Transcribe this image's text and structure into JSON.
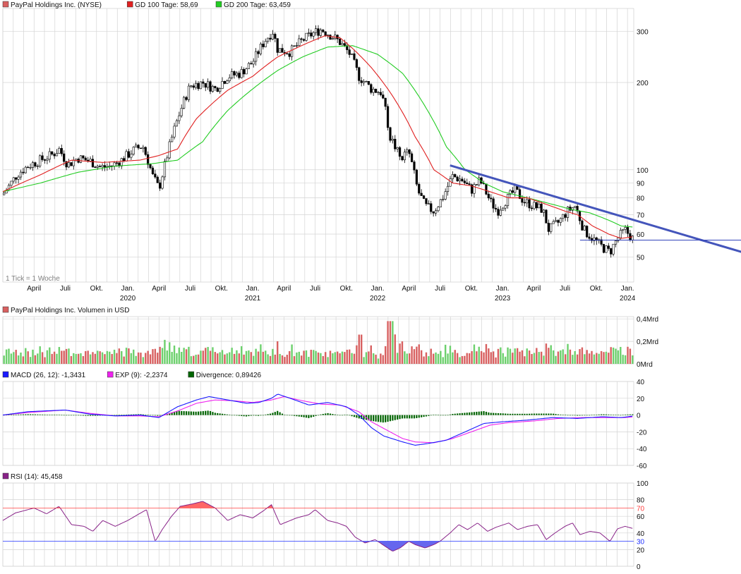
{
  "colors": {
    "grid": "#d4d4d4",
    "gd100": "#e02020",
    "gd200": "#22cc22",
    "trend": "#4455bb",
    "support": "#3344bb",
    "vol_up": "#6cd06c",
    "vol_down": "#d86060",
    "macd": "#1a1aff",
    "signal": "#ee22ee",
    "divergence": "#006400",
    "rsi": "#882288",
    "rsi_hi": "#ff4040",
    "rsi_lo": "#2233ff",
    "rsi_hi_fill": "#ff6666",
    "rsi_lo_fill": "#6666ee"
  },
  "price_panel": {
    "legend": [
      {
        "text": "PayPal Holdings Inc. (NYSE)",
        "color": "#d86060"
      },
      {
        "text": "GD 100 Tage: 58,69",
        "color": "#e02020"
      },
      {
        "text": "GD 200 Tage: 63,459",
        "color": "#22cc22"
      }
    ],
    "note": "1 Tick = 1 Woche",
    "scale": "log",
    "ylim": [
      41,
      360
    ],
    "yticks": [
      {
        "v": 300,
        "t": "300"
      },
      {
        "v": 200,
        "t": "200"
      },
      {
        "v": 100,
        "t": "100"
      },
      {
        "v": 90,
        "t": "90"
      },
      {
        "v": 80,
        "t": "80"
      },
      {
        "v": 70,
        "t": "70"
      },
      {
        "v": 60,
        "t": "60"
      },
      {
        "v": 50,
        "t": "50"
      }
    ],
    "xticks": [
      {
        "t": "April",
        "y": "",
        "x": 2019.25
      },
      {
        "t": "Juli",
        "y": "",
        "x": 2019.5
      },
      {
        "t": "Okt.",
        "y": "",
        "x": 2019.75
      },
      {
        "t": "Jan.",
        "y": "2020",
        "x": 2020.0
      },
      {
        "t": "April",
        "y": "",
        "x": 2020.25
      },
      {
        "t": "Juli",
        "y": "",
        "x": 2020.5
      },
      {
        "t": "Okt.",
        "y": "",
        "x": 2020.75
      },
      {
        "t": "Jan.",
        "y": "2021",
        "x": 2021.0
      },
      {
        "t": "April",
        "y": "",
        "x": 2021.25
      },
      {
        "t": "Juli",
        "y": "",
        "x": 2021.5
      },
      {
        "t": "Okt.",
        "y": "",
        "x": 2021.75
      },
      {
        "t": "Jan.",
        "y": "2022",
        "x": 2022.0
      },
      {
        "t": "April",
        "y": "",
        "x": 2022.25
      },
      {
        "t": "Juli",
        "y": "",
        "x": 2022.5
      },
      {
        "t": "Okt.",
        "y": "",
        "x": 2022.75
      },
      {
        "t": "Jan.",
        "y": "2023",
        "x": 2023.0
      },
      {
        "t": "April",
        "y": "",
        "x": 2023.25
      },
      {
        "t": "Juli",
        "y": "",
        "x": 2023.5
      },
      {
        "t": "Okt.",
        "y": "",
        "x": 2023.75
      },
      {
        "t": "Jan.",
        "y": "2024",
        "x": 2024.0
      }
    ]
  },
  "volume_panel": {
    "legend": [
      {
        "text": "PayPal Holdings Inc. Volumen in USD",
        "color": "#d86060"
      }
    ],
    "ylim": [
      0,
      0.42
    ],
    "yticks": [
      {
        "v": 0.4,
        "t": "0,4Mrd"
      },
      {
        "v": 0.2,
        "t": "0,2Mrd"
      },
      {
        "v": 0,
        "t": "0Mrd"
      }
    ]
  },
  "macd_panel": {
    "legend": [
      {
        "text": "MACD (26, 12): -1,3431",
        "color": "#1a1aff"
      },
      {
        "text": "EXP (9): -2,2374",
        "color": "#ee22ee"
      },
      {
        "text": "Divergence: 0,89426",
        "color": "#006400"
      }
    ],
    "ylim": [
      -60,
      40
    ],
    "yticks": [
      {
        "v": 40,
        "t": "40"
      },
      {
        "v": 20,
        "t": "20"
      },
      {
        "v": 0,
        "t": "0"
      },
      {
        "v": -20,
        "t": "-20"
      },
      {
        "v": -40,
        "t": "-40"
      },
      {
        "v": -60,
        "t": "-60"
      }
    ]
  },
  "rsi_panel": {
    "legend": [
      {
        "text": "RSI (14): 45,458",
        "color": "#882288"
      }
    ],
    "ylim": [
      0,
      100
    ],
    "yticks": [
      {
        "v": 100,
        "t": "100"
      },
      {
        "v": 80,
        "t": "80"
      },
      {
        "v": 60,
        "t": "60"
      },
      {
        "v": 40,
        "t": "40"
      },
      {
        "v": 20,
        "t": "20"
      },
      {
        "v": 0,
        "t": "0"
      }
    ],
    "levels": [
      {
        "v": 70,
        "t": "70"
      },
      {
        "v": 30,
        "t": "30"
      }
    ]
  },
  "chart_data": {
    "type": "line",
    "title": "PayPal Holdings Inc. (NYSE)",
    "x_range": [
      2019.0,
      2024.05
    ],
    "price_knots": [
      [
        2019.0,
        82
      ],
      [
        2019.05,
        88
      ],
      [
        2019.12,
        97
      ],
      [
        2019.2,
        103
      ],
      [
        2019.3,
        108
      ],
      [
        2019.4,
        113
      ],
      [
        2019.45,
        118
      ],
      [
        2019.52,
        104
      ],
      [
        2019.6,
        110
      ],
      [
        2019.7,
        107
      ],
      [
        2019.78,
        102
      ],
      [
        2019.87,
        103
      ],
      [
        2019.95,
        108
      ],
      [
        2020.05,
        117
      ],
      [
        2020.12,
        121
      ],
      [
        2020.2,
        95
      ],
      [
        2020.25,
        86
      ],
      [
        2020.3,
        105
      ],
      [
        2020.4,
        150
      ],
      [
        2020.5,
        195
      ],
      [
        2020.6,
        200
      ],
      [
        2020.7,
        190
      ],
      [
        2020.8,
        210
      ],
      [
        2020.9,
        215
      ],
      [
        2021.0,
        235
      ],
      [
        2021.1,
        280
      ],
      [
        2021.16,
        300
      ],
      [
        2021.2,
        260
      ],
      [
        2021.3,
        255
      ],
      [
        2021.4,
        280
      ],
      [
        2021.48,
        295
      ],
      [
        2021.55,
        305
      ],
      [
        2021.63,
        290
      ],
      [
        2021.7,
        275
      ],
      [
        2021.78,
        250
      ],
      [
        2021.85,
        210
      ],
      [
        2021.95,
        190
      ],
      [
        2022.03,
        185
      ],
      [
        2022.1,
        130
      ],
      [
        2022.18,
        110
      ],
      [
        2022.25,
        115
      ],
      [
        2022.32,
        85
      ],
      [
        2022.38,
        75
      ],
      [
        2022.45,
        72
      ],
      [
        2022.52,
        80
      ],
      [
        2022.6,
        95
      ],
      [
        2022.68,
        92
      ],
      [
        2022.75,
        85
      ],
      [
        2022.82,
        92
      ],
      [
        2022.9,
        78
      ],
      [
        2022.96,
        72
      ],
      [
        2023.02,
        78
      ],
      [
        2023.1,
        85
      ],
      [
        2023.17,
        78
      ],
      [
        2023.25,
        75
      ],
      [
        2023.32,
        73
      ],
      [
        2023.37,
        62
      ],
      [
        2023.45,
        66
      ],
      [
        2023.52,
        72
      ],
      [
        2023.58,
        75
      ],
      [
        2023.65,
        62
      ],
      [
        2023.72,
        58
      ],
      [
        2023.8,
        54
      ],
      [
        2023.86,
        52
      ],
      [
        2023.92,
        58
      ],
      [
        2023.98,
        62
      ],
      [
        2024.04,
        58
      ]
    ],
    "gd100_knots": [
      [
        2019.0,
        84
      ],
      [
        2019.3,
        96
      ],
      [
        2019.55,
        108
      ],
      [
        2019.8,
        106
      ],
      [
        2020.1,
        108
      ],
      [
        2020.25,
        112
      ],
      [
        2020.4,
        118
      ],
      [
        2020.55,
        150
      ],
      [
        2020.8,
        188
      ],
      [
        2021.0,
        210
      ],
      [
        2021.2,
        245
      ],
      [
        2021.45,
        275
      ],
      [
        2021.58,
        290
      ],
      [
        2021.7,
        285
      ],
      [
        2021.8,
        262
      ],
      [
        2021.95,
        225
      ],
      [
        2022.1,
        185
      ],
      [
        2022.3,
        130
      ],
      [
        2022.45,
        100
      ],
      [
        2022.6,
        90
      ],
      [
        2022.75,
        88
      ],
      [
        2022.9,
        84
      ],
      [
        2023.05,
        80
      ],
      [
        2023.2,
        80
      ],
      [
        2023.35,
        76
      ],
      [
        2023.5,
        72
      ],
      [
        2023.6,
        70
      ],
      [
        2023.72,
        64
      ],
      [
        2023.85,
        60
      ],
      [
        2023.95,
        58
      ],
      [
        2024.04,
        58.7
      ]
    ],
    "gd200_knots": [
      [
        2019.0,
        84
      ],
      [
        2019.3,
        90
      ],
      [
        2019.6,
        98
      ],
      [
        2019.9,
        103
      ],
      [
        2020.2,
        105
      ],
      [
        2020.4,
        108
      ],
      [
        2020.6,
        125
      ],
      [
        2020.8,
        160
      ],
      [
        2021.0,
        190
      ],
      [
        2021.2,
        220
      ],
      [
        2021.4,
        245
      ],
      [
        2021.6,
        265
      ],
      [
        2021.8,
        268
      ],
      [
        2022.0,
        250
      ],
      [
        2022.2,
        215
      ],
      [
        2022.4,
        160
      ],
      [
        2022.55,
        120
      ],
      [
        2022.7,
        100
      ],
      [
        2022.85,
        90
      ],
      [
        2023.0,
        84
      ],
      [
        2023.2,
        80
      ],
      [
        2023.4,
        76
      ],
      [
        2023.55,
        73
      ],
      [
        2023.7,
        71
      ],
      [
        2023.85,
        67
      ],
      [
        2023.95,
        64
      ],
      [
        2024.04,
        63.5
      ]
    ],
    "trend_line": [
      [
        2022.58,
        103.5
      ],
      [
        2024.95,
        51.5
      ]
    ],
    "support_line": [
      [
        2023.62,
        57.2
      ],
      [
        2024.95,
        57.2
      ]
    ],
    "macd_knots": [
      [
        2019.0,
        0
      ],
      [
        2019.2,
        4
      ],
      [
        2019.5,
        6
      ],
      [
        2019.7,
        1
      ],
      [
        2019.9,
        -1
      ],
      [
        2020.1,
        0
      ],
      [
        2020.25,
        -3
      ],
      [
        2020.4,
        10
      ],
      [
        2020.55,
        18
      ],
      [
        2020.65,
        22
      ],
      [
        2020.8,
        18
      ],
      [
        2020.95,
        14
      ],
      [
        2021.05,
        15
      ],
      [
        2021.15,
        20
      ],
      [
        2021.2,
        25
      ],
      [
        2021.3,
        20
      ],
      [
        2021.45,
        12
      ],
      [
        2021.6,
        15
      ],
      [
        2021.75,
        10
      ],
      [
        2021.85,
        0
      ],
      [
        2021.95,
        -15
      ],
      [
        2022.05,
        -25
      ],
      [
        2022.2,
        -32
      ],
      [
        2022.3,
        -36
      ],
      [
        2022.4,
        -34
      ],
      [
        2022.55,
        -30
      ],
      [
        2022.7,
        -20
      ],
      [
        2022.85,
        -10
      ],
      [
        2023.0,
        -8
      ],
      [
        2023.2,
        -6
      ],
      [
        2023.4,
        -3
      ],
      [
        2023.6,
        -4
      ],
      [
        2023.8,
        -2
      ],
      [
        2023.95,
        -3
      ],
      [
        2024.04,
        -1.3
      ]
    ],
    "signal_knots": [
      [
        2019.0,
        0
      ],
      [
        2019.2,
        3
      ],
      [
        2019.5,
        6
      ],
      [
        2019.7,
        2
      ],
      [
        2019.9,
        -1
      ],
      [
        2020.1,
        -1
      ],
      [
        2020.25,
        -2
      ],
      [
        2020.4,
        5
      ],
      [
        2020.55,
        14
      ],
      [
        2020.7,
        18
      ],
      [
        2020.85,
        17
      ],
      [
        2021.0,
        15
      ],
      [
        2021.15,
        18
      ],
      [
        2021.25,
        22
      ],
      [
        2021.4,
        17
      ],
      [
        2021.55,
        13
      ],
      [
        2021.7,
        12
      ],
      [
        2021.85,
        4
      ],
      [
        2021.95,
        -8
      ],
      [
        2022.1,
        -20
      ],
      [
        2022.2,
        -28
      ],
      [
        2022.3,
        -32
      ],
      [
        2022.45,
        -33
      ],
      [
        2022.6,
        -28
      ],
      [
        2022.75,
        -20
      ],
      [
        2022.9,
        -12
      ],
      [
        2023.05,
        -9
      ],
      [
        2023.25,
        -7
      ],
      [
        2023.45,
        -4
      ],
      [
        2023.65,
        -3
      ],
      [
        2023.85,
        -3
      ],
      [
        2023.98,
        -3
      ],
      [
        2024.04,
        -2.2
      ]
    ],
    "rsi_knots": [
      [
        2019.0,
        55
      ],
      [
        2019.1,
        64
      ],
      [
        2019.25,
        70
      ],
      [
        2019.35,
        63
      ],
      [
        2019.45,
        72
      ],
      [
        2019.55,
        50
      ],
      [
        2019.65,
        48
      ],
      [
        2019.72,
        42
      ],
      [
        2019.8,
        55
      ],
      [
        2019.9,
        48
      ],
      [
        2020.0,
        55
      ],
      [
        2020.08,
        62
      ],
      [
        2020.15,
        68
      ],
      [
        2020.22,
        30
      ],
      [
        2020.28,
        45
      ],
      [
        2020.35,
        60
      ],
      [
        2020.42,
        72
      ],
      [
        2020.52,
        75
      ],
      [
        2020.6,
        78
      ],
      [
        2020.7,
        70
      ],
      [
        2020.8,
        55
      ],
      [
        2020.9,
        62
      ],
      [
        2021.0,
        58
      ],
      [
        2021.08,
        66
      ],
      [
        2021.15,
        74
      ],
      [
        2021.22,
        50
      ],
      [
        2021.35,
        58
      ],
      [
        2021.45,
        62
      ],
      [
        2021.5,
        68
      ],
      [
        2021.6,
        55
      ],
      [
        2021.68,
        52
      ],
      [
        2021.75,
        48
      ],
      [
        2021.82,
        35
      ],
      [
        2021.9,
        28
      ],
      [
        2021.98,
        32
      ],
      [
        2022.05,
        25
      ],
      [
        2022.12,
        18
      ],
      [
        2022.18,
        22
      ],
      [
        2022.25,
        30
      ],
      [
        2022.3,
        26
      ],
      [
        2022.38,
        22
      ],
      [
        2022.45,
        26
      ],
      [
        2022.5,
        30
      ],
      [
        2022.58,
        40
      ],
      [
        2022.65,
        50
      ],
      [
        2022.72,
        44
      ],
      [
        2022.8,
        52
      ],
      [
        2022.88,
        42
      ],
      [
        2022.95,
        47
      ],
      [
        2023.05,
        52
      ],
      [
        2023.12,
        44
      ],
      [
        2023.2,
        48
      ],
      [
        2023.28,
        50
      ],
      [
        2023.35,
        32
      ],
      [
        2023.42,
        40
      ],
      [
        2023.5,
        48
      ],
      [
        2023.56,
        52
      ],
      [
        2023.62,
        38
      ],
      [
        2023.7,
        42
      ],
      [
        2023.78,
        40
      ],
      [
        2023.86,
        30
      ],
      [
        2023.92,
        45
      ],
      [
        2023.98,
        48
      ],
      [
        2024.04,
        45.5
      ]
    ]
  }
}
